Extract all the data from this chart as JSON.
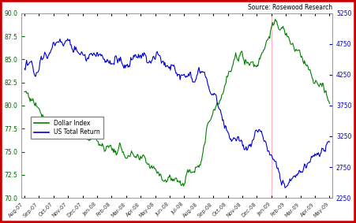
{
  "title": "Source: Rosewood Research",
  "left_ylim": [
    70.0,
    90.0
  ],
  "right_ylim": [
    2250,
    5250
  ],
  "left_yticks": [
    70.0,
    72.5,
    75.0,
    77.5,
    80.0,
    82.5,
    85.0,
    87.5,
    90.0
  ],
  "right_yticks": [
    2250,
    2750,
    3250,
    3750,
    4250,
    4750,
    5250
  ],
  "dollar_color": "#008000",
  "equity_color": "#0000CC",
  "vline_color": "#FFB6C1",
  "background_color": "#FFFFFF",
  "border_color": "#CC0000",
  "legend_labels": [
    "Dollar Index",
    "US Total Return"
  ],
  "x_labels": [
    "Aug-07",
    "Sep-07",
    "Oct-07",
    "Nov-07",
    "Dec-07",
    "Jan-08",
    "Feb-08",
    "Mar-08",
    "Apr-08",
    "May-08",
    "Jun-08",
    "Jul-08",
    "Aug-08",
    "Sep-08",
    "Oct-08",
    "Nov-08",
    "Dec-08",
    "Jan-09",
    "Feb-09",
    "Mar-09",
    "Apr-09",
    "May-09"
  ],
  "dollar_monthly": [
    81.5,
    80.0,
    78.5,
    77.5,
    76.5,
    76.2,
    75.5,
    75.0,
    73.0,
    73.2,
    72.5,
    72.0,
    74.5,
    80.0,
    83.5,
    85.5,
    84.5,
    89.0,
    87.5,
    85.0,
    83.0,
    80.0
  ],
  "equity_monthly": [
    4350,
    4450,
    4750,
    4680,
    4600,
    4580,
    4530,
    4400,
    4460,
    4510,
    4380,
    4280,
    4230,
    4030,
    3250,
    3150,
    3180,
    2880,
    2300,
    2720,
    3020,
    3230
  ]
}
